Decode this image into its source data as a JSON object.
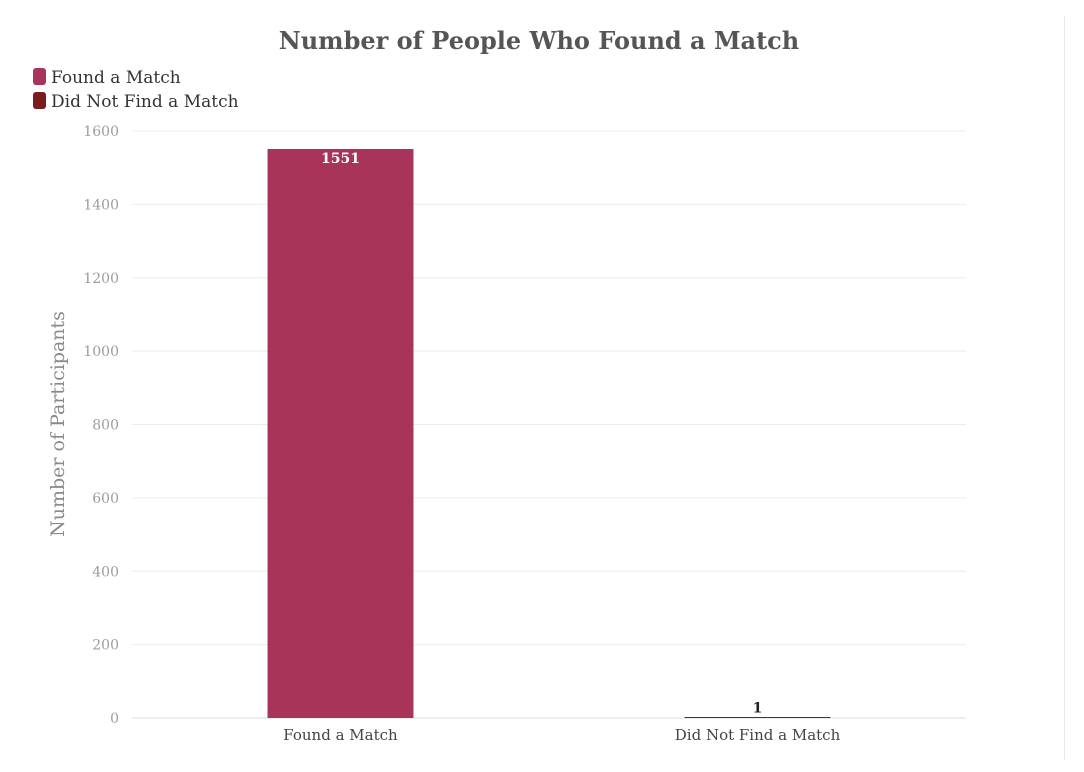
{
  "chart_data": {
    "type": "bar",
    "title": "Number of People Who Found a Match",
    "xlabel": "",
    "ylabel": "Number of Participants",
    "categories": [
      "Found a Match",
      "Did Not Find a Match"
    ],
    "values": [
      1551,
      1
    ],
    "data_labels": [
      "1551",
      "1"
    ],
    "colors": [
      "#a8345a",
      "#7b1c1c"
    ],
    "legend": {
      "placement": "top-left",
      "entries": [
        {
          "label": "Found a Match",
          "color": "#a8345a"
        },
        {
          "label": "Did Not Find a Match",
          "color": "#7b1c1c"
        }
      ]
    },
    "ylim": [
      0,
      1600
    ],
    "yticks": [
      0,
      200,
      400,
      600,
      800,
      1000,
      1200,
      1400,
      1600
    ],
    "ytick_labels": [
      "0",
      "200",
      "400",
      "600",
      "800",
      "1000",
      "1200",
      "1400",
      "1600"
    ],
    "grid": true
  }
}
